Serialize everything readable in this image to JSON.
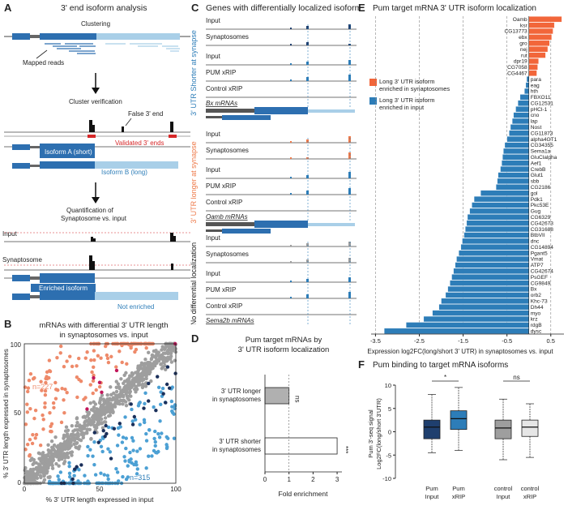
{
  "panelA": {
    "letter": "A",
    "title": "3' end isoform analysis",
    "clustering": "Clustering",
    "mapped_reads": "Mapped reads",
    "cluster_verification": "Cluster verification",
    "false_end": "False 3' end",
    "validated_ends": "Validated 3' ends",
    "isoform_a": "Isoform A (short)",
    "isoform_b": "Isoform B (long)",
    "quantification": "Quantification of",
    "quantification2": "Synaptosome vs. input",
    "input": "Input",
    "synaptosome": "Synaptosome",
    "enriched": "Enriched isoform",
    "not_enriched": "Not enriched"
  },
  "panelB": {
    "letter": "B",
    "title1": "mRNAs with differential 3' UTR length",
    "title2": "in synaptosomes vs. input",
    "n_top": "n=227",
    "n_bottom": "n=315",
    "xlabel": "% 3' UTR length expressed in input",
    "ylabel": "% 3' UTR length expressed in synaptosomes",
    "ticks": [
      "0",
      "50",
      "100"
    ],
    "colors": {
      "grey": "#9e9e9e",
      "orange": "#ee8a6a",
      "blue": "#4ca0d4",
      "dark": "#1a2f5a",
      "pink": "#c2185b"
    }
  },
  "panelC": {
    "letter": "C",
    "title": "Genes with differentially localized isoforms",
    "g1_side": "3' UTR Shorter at synapse",
    "g2_side": "3' UTR longer at synapse",
    "g3_side": "No differential localization",
    "g1_tracks": [
      "Input",
      "Synaptosomes",
      "Input",
      "PUM xRIP",
      "Control xRIP"
    ],
    "g1_gene": "Bx mRNAs",
    "g2_tracks": [
      "Input",
      "Synaptosomes",
      "Input",
      "PUM xRIP",
      "Control xRIP"
    ],
    "g2_gene": "Oamb mRNAs",
    "g3_tracks": [
      "Input",
      "Synaptosomes",
      "Input",
      "PUM xRIP",
      "Control xRIP"
    ],
    "g3_gene": "Sema2b mRNAs"
  },
  "panelD": {
    "letter": "D",
    "title1": "Pum target mRNAs by",
    "title2": "3' UTR isoform localization",
    "xlabel": "Fold enrichment"
  },
  "panelE": {
    "letter": "E",
    "title": "Pum target mRNA 3' UTR isoform localization",
    "legend_long": "Long 3' UTR isoform enriched in synaptosomes",
    "legend_long2": "enriched in synaptosomes",
    "legend_input": "Long 3' UTR isoform",
    "legend_input2": "enriched in input",
    "xlabel": "Expression log2FC(long/short 3' UTR) in synaptosomes vs. input"
  },
  "panelF": {
    "letter": "F",
    "title": "Pum binding to target mRNA isoforms",
    "ylabel1": "Pum 3'-seq signal",
    "ylabel2": "Log2FC(long/short 3'UTR)",
    "sig1": "*",
    "sig2": "ns",
    "ticks": [
      "-10",
      "-5",
      "0",
      "5",
      "10"
    ]
  },
  "chart_data": [
    {
      "id": "D",
      "type": "bar",
      "categories": [
        "3' UTR longer in synaptosomes",
        "3' UTR shorter in synaptosomes"
      ],
      "values": [
        1.0,
        3.0
      ],
      "annotations": [
        "ns",
        "***"
      ],
      "xlabel": "Fold enrichment",
      "xlim": [
        0,
        3.2
      ],
      "xticks": [
        "0",
        "1",
        "2",
        "3"
      ]
    },
    {
      "id": "E",
      "type": "bar",
      "orientation": "horizontal",
      "xlabel": "Expression log2FC(long/short 3' UTR) in synaptosomes vs. input",
      "xlim": [
        -3.6,
        0.8
      ],
      "xticks": [
        "-3.5",
        "-2.5",
        "-1.5",
        "-0.5",
        "0.5"
      ],
      "categories": [
        "Oamb",
        "ksr",
        "CG13773",
        "ebx",
        "gro",
        "nej",
        "rut",
        "dpr19",
        "CG7058",
        "CG4467",
        "para",
        "eag",
        "hth",
        "FBXO11",
        "CG12531",
        "pHCl-1",
        "cno",
        "lap",
        "Nost",
        "CG11873",
        "alpha4GT1",
        "CG34355",
        "Sema1a",
        "GluClalpha",
        "Aef1",
        "CrebB",
        "Glut1",
        "sbb",
        "CG2186",
        "gol",
        "Pdk1",
        "Pkc53E",
        "Gug",
        "CG6329",
        "CG42673",
        "CG31688",
        "BtbVII",
        "dnc",
        "CG14894",
        "Pgant5",
        "Vmat",
        "ATP7",
        "CG42674",
        "PsGEF",
        "CG9849",
        "Bx",
        "orb2",
        "Khc-73",
        "Dh44",
        "myo",
        "krz",
        "rdgB",
        "dysc"
      ],
      "values": [
        0.75,
        0.58,
        0.55,
        0.52,
        0.47,
        0.43,
        0.38,
        0.22,
        0.2,
        0.18,
        -0.05,
        -0.07,
        -0.1,
        -0.2,
        -0.25,
        -0.3,
        -0.35,
        -0.38,
        -0.42,
        -0.45,
        -0.5,
        -0.55,
        -0.58,
        -0.6,
        -0.62,
        -0.65,
        -0.7,
        -0.72,
        -0.75,
        -1.1,
        -1.25,
        -1.3,
        -1.35,
        -1.4,
        -1.42,
        -1.45,
        -1.48,
        -1.52,
        -1.55,
        -1.6,
        -1.65,
        -1.68,
        -1.72,
        -1.76,
        -1.8,
        -1.85,
        -1.9,
        -2.0,
        -2.05,
        -2.2,
        -2.4,
        -2.8,
        -3.3
      ],
      "colors": {
        "positive": "#f2663a",
        "negative": "#2d7db8"
      }
    },
    {
      "id": "F",
      "type": "box",
      "categories": [
        "Pum Input",
        "Pum xRIP",
        "control Input",
        "control xRIP"
      ],
      "boxes": [
        {
          "name": "Pum Input",
          "min": -4.5,
          "q1": -1.5,
          "median": 1.0,
          "q3": 2.5,
          "max": 8.0,
          "color": "#1f3f6e"
        },
        {
          "name": "Pum xRIP",
          "min": -4.0,
          "q1": 0.5,
          "median": 2.8,
          "q3": 4.5,
          "max": 9.5,
          "color": "#2d7db8"
        },
        {
          "name": "control Input",
          "min": -6.0,
          "q1": -1.5,
          "median": 0.8,
          "q3": 2.5,
          "max": 7.0,
          "color": "#9e9e9e"
        },
        {
          "name": "control xRIP",
          "min": -5.5,
          "q1": -1.0,
          "median": 1.0,
          "q3": 2.5,
          "max": 6.0,
          "color": "#e6e6e6"
        }
      ],
      "ylim": [
        -10,
        10
      ],
      "significance": [
        {
          "pair": [
            "Pum Input",
            "Pum xRIP"
          ],
          "label": "*"
        },
        {
          "pair": [
            "control Input",
            "control xRIP"
          ],
          "label": "ns"
        }
      ]
    }
  ]
}
